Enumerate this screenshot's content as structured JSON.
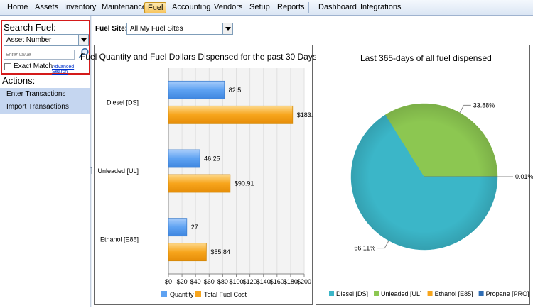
{
  "menu": {
    "items": [
      "Home",
      "Assets",
      "Inventory",
      "Maintenance",
      "Fuel",
      "Accounting",
      "Vendors",
      "Setup",
      "Reports",
      "Dashboard",
      "Integrations"
    ],
    "active": "Fuel"
  },
  "search": {
    "title": "Search Fuel:",
    "type_value": "Asset Number",
    "placeholder": "Enter value",
    "exact_match_label": "Exact Match",
    "advanced_link": "Advanced Search"
  },
  "actions": {
    "title": "Actions:",
    "items": [
      "Enter Transactions",
      "Import Transactions"
    ]
  },
  "fuel_site": {
    "label": "Fuel Site:",
    "value": "All My Fuel Sites"
  },
  "colors": {
    "quantity": "#5ea2f2",
    "total_cost": "#f7a51c",
    "diesel": "#3bb6c8",
    "unleaded": "#8cc751",
    "ethanol": "#f7a51c",
    "propane": "#2f6db4"
  },
  "chart_data": [
    {
      "type": "bar",
      "orientation": "horizontal",
      "title": "Fuel Quantity and Fuel Dollars Dispensed for the past 30 Days",
      "categories": [
        "Diesel [DS]",
        "Unleaded [UL]",
        "Ethanol [E85]"
      ],
      "series": [
        {
          "name": "Quantity",
          "values": [
            82.5,
            46.25,
            27
          ],
          "labels": [
            "82.5",
            "46.25",
            "27"
          ]
        },
        {
          "name": "Total Fuel Cost",
          "values": [
            183.0,
            90.91,
            55.84
          ],
          "labels": [
            "$183.",
            "$90.91",
            "$55.84"
          ]
        }
      ],
      "xlim": [
        0,
        200
      ],
      "xticks": [
        "$0",
        "$20",
        "$40",
        "$60",
        "$80",
        "$100",
        "$120",
        "$140",
        "$160",
        "$180",
        "$200"
      ],
      "legend": "bottom"
    },
    {
      "type": "pie",
      "title": "Last 365-days of all fuel dispensed",
      "slices": [
        {
          "name": "Diesel [DS]",
          "value": 66.11,
          "label": "66.11%"
        },
        {
          "name": "Unleaded [UL]",
          "value": 33.88,
          "label": "33.88%"
        },
        {
          "name": "Ethanol [E85]",
          "value": 0.0,
          "label": ""
        },
        {
          "name": "Propane [PRO]",
          "value": 0.01,
          "label": "0.01%"
        }
      ],
      "legend": "bottom"
    }
  ]
}
